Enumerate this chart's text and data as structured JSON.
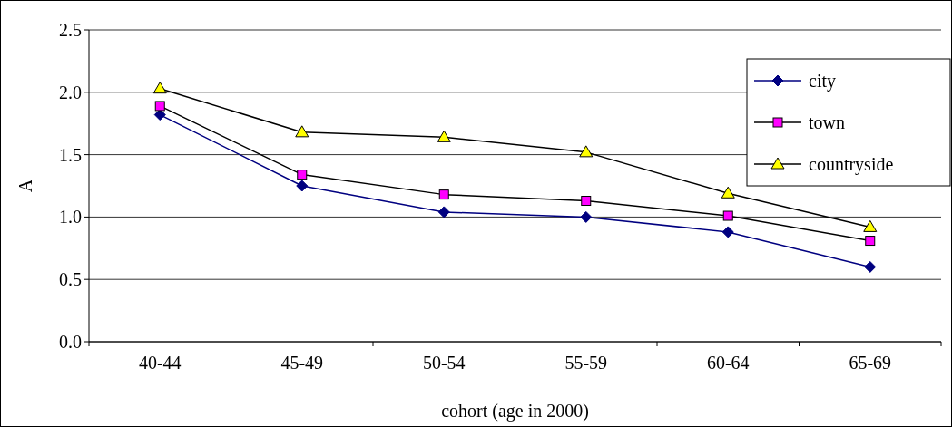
{
  "chart_data": {
    "type": "line",
    "xlabel": "cohort (age in 2000)",
    "ylabel": "A",
    "categories": [
      "40-44",
      "45-49",
      "50-54",
      "55-59",
      "60-64",
      "65-69"
    ],
    "series": [
      {
        "name": "city",
        "color": "#000080",
        "marker": "diamond",
        "values": [
          1.82,
          1.25,
          1.04,
          1.0,
          0.88,
          0.6
        ]
      },
      {
        "name": "town",
        "color": "#ff00ff",
        "marker": "square",
        "values": [
          1.89,
          1.34,
          1.18,
          1.13,
          1.01,
          0.81
        ]
      },
      {
        "name": "countryside",
        "color": "#ffff00",
        "marker": "triangle",
        "values": [
          2.03,
          1.68,
          1.64,
          1.52,
          1.19,
          0.92
        ]
      }
    ],
    "ylim": [
      0,
      2.5
    ],
    "yticks": [
      {
        "value": 0,
        "label": "0.0"
      },
      {
        "value": 0.5,
        "label": "0.5"
      },
      {
        "value": 1,
        "label": "1.0"
      },
      {
        "value": 1.5,
        "label": "1.5"
      },
      {
        "value": 2,
        "label": "2.0"
      },
      {
        "value": 2.5,
        "label": "2.5"
      }
    ],
    "grid": "y",
    "legend": "top right"
  }
}
